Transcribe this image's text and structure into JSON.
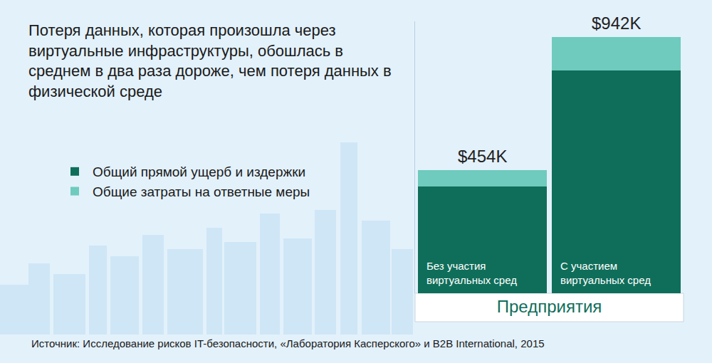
{
  "chart_data": {
    "type": "bar",
    "title": "Потеря данных, которая произошла через\nвиртуальные инфраструктуры, обошлась в\nсреднем в два раза дороже, чем потеря данных в\nфизической среде",
    "stacked": true,
    "categories": [
      "Без участия\nвиртуальных сред",
      "С участием\nвиртуальных сред"
    ],
    "series": [
      {
        "name": "Общий прямой ущерб и издержки",
        "color": "#0f6e5a",
        "values": [
          392,
          820
        ]
      },
      {
        "name": "Общие затраты на ответные меры",
        "color": "#6ecbbd",
        "values": [
          62,
          122
        ]
      }
    ],
    "totals": {
      "values": [
        454,
        942
      ],
      "value_labels": [
        "$454K",
        "$942K"
      ]
    },
    "xlabel": "Предприятия",
    "ylim": [
      0,
      1000
    ],
    "yticks": [],
    "tick_labels": false,
    "grid": false,
    "legend": "left",
    "source": "Источник: Исследование рисков IT-безопасности, «Лаборатория Касперского» и B2B International, 2015"
  }
}
